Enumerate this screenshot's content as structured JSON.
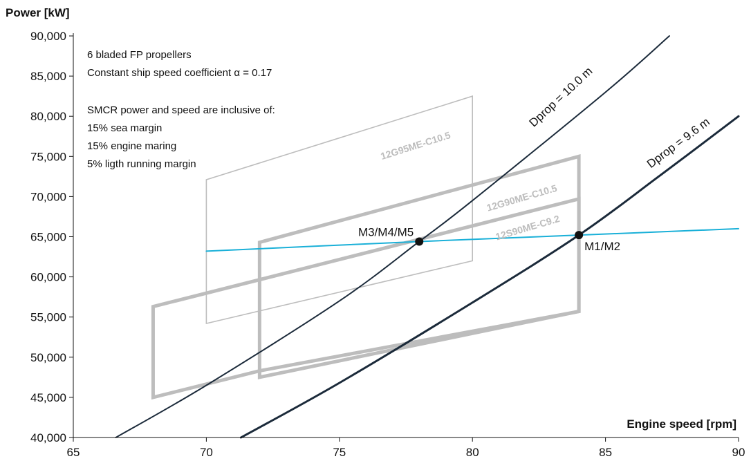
{
  "chart_data": {
    "type": "line",
    "xlabel": "Engine speed [rpm]",
    "ylabel": "Power [kW]",
    "xlim": [
      65,
      90
    ],
    "ylim": [
      40000,
      90000
    ],
    "xticks": [
      {
        "value": 65,
        "label": "65"
      },
      {
        "value": 70,
        "label": "70"
      },
      {
        "value": 75,
        "label": "75"
      },
      {
        "value": 80,
        "label": "80"
      },
      {
        "value": 85,
        "label": "85"
      },
      {
        "value": 90,
        "label": "90"
      }
    ],
    "yticks": [
      {
        "value": 40000,
        "label": "40,000"
      },
      {
        "value": 45000,
        "label": "45,000"
      },
      {
        "value": 50000,
        "label": "50,000"
      },
      {
        "value": 55000,
        "label": "55,000"
      },
      {
        "value": 60000,
        "label": "60,000"
      },
      {
        "value": 65000,
        "label": "65,000"
      },
      {
        "value": 70000,
        "label": "70,000"
      },
      {
        "value": 75000,
        "label": "75,000"
      },
      {
        "value": 80000,
        "label": "80,000"
      },
      {
        "value": 85000,
        "label": "85,000"
      },
      {
        "value": 90000,
        "label": "90,000"
      }
    ],
    "grid": false,
    "notes": [
      "6 bladed FP propellers",
      "Constant ship speed coefficient α = 0.17",
      "",
      "SMCR power and speed are inclusive of:",
      "15% sea margin",
      "15% engine maring",
      "5% ligth running margin"
    ],
    "engine_layouts": [
      {
        "name": "12G95ME-C10.5",
        "color": "#bdbdbd",
        "weight": "thin",
        "corners": [
          [
            70,
            54200
          ],
          [
            70,
            72100
          ],
          [
            80,
            82500
          ],
          [
            80,
            62000
          ]
        ]
      },
      {
        "name": "12G90ME-C10.5",
        "color": "#bdbdbd",
        "weight": "thick",
        "corners": [
          [
            72,
            47500
          ],
          [
            72,
            64300
          ],
          [
            84,
            75000
          ],
          [
            84,
            55700
          ]
        ]
      },
      {
        "name": "12S90ME-C9.2",
        "color": "#bdbdbd",
        "weight": "thick",
        "corners": [
          [
            68,
            45000
          ],
          [
            68,
            56300
          ],
          [
            84,
            69700
          ],
          [
            84,
            55700
          ],
          [
            72,
            48300
          ]
        ]
      }
    ],
    "series": [
      {
        "name": "Dprop = 10.0 m",
        "color": "#1b2a3a",
        "points": [
          [
            66.6,
            40000
          ],
          [
            70,
            46500
          ],
          [
            75,
            57000
          ],
          [
            78,
            64400
          ],
          [
            80,
            69500
          ],
          [
            85,
            83000
          ],
          [
            87.4,
            90000
          ]
        ]
      },
      {
        "name": "Dprop = 9.6 m",
        "color": "#1b2a3a",
        "points": [
          [
            71.3,
            40000
          ],
          [
            75,
            46800
          ],
          [
            80,
            56800
          ],
          [
            84,
            65200
          ],
          [
            87,
            72500
          ],
          [
            90,
            80000
          ]
        ]
      },
      {
        "name": "",
        "color": "#1ab0d8",
        "points": [
          [
            70,
            63200
          ],
          [
            78,
            64400
          ],
          [
            84,
            65200
          ],
          [
            90,
            66000
          ]
        ]
      }
    ],
    "marked_points": [
      {
        "label": "M3/M4/M5",
        "x": 78,
        "y": 64400
      },
      {
        "label": "M1/M2",
        "x": 84,
        "y": 65200
      }
    ]
  }
}
